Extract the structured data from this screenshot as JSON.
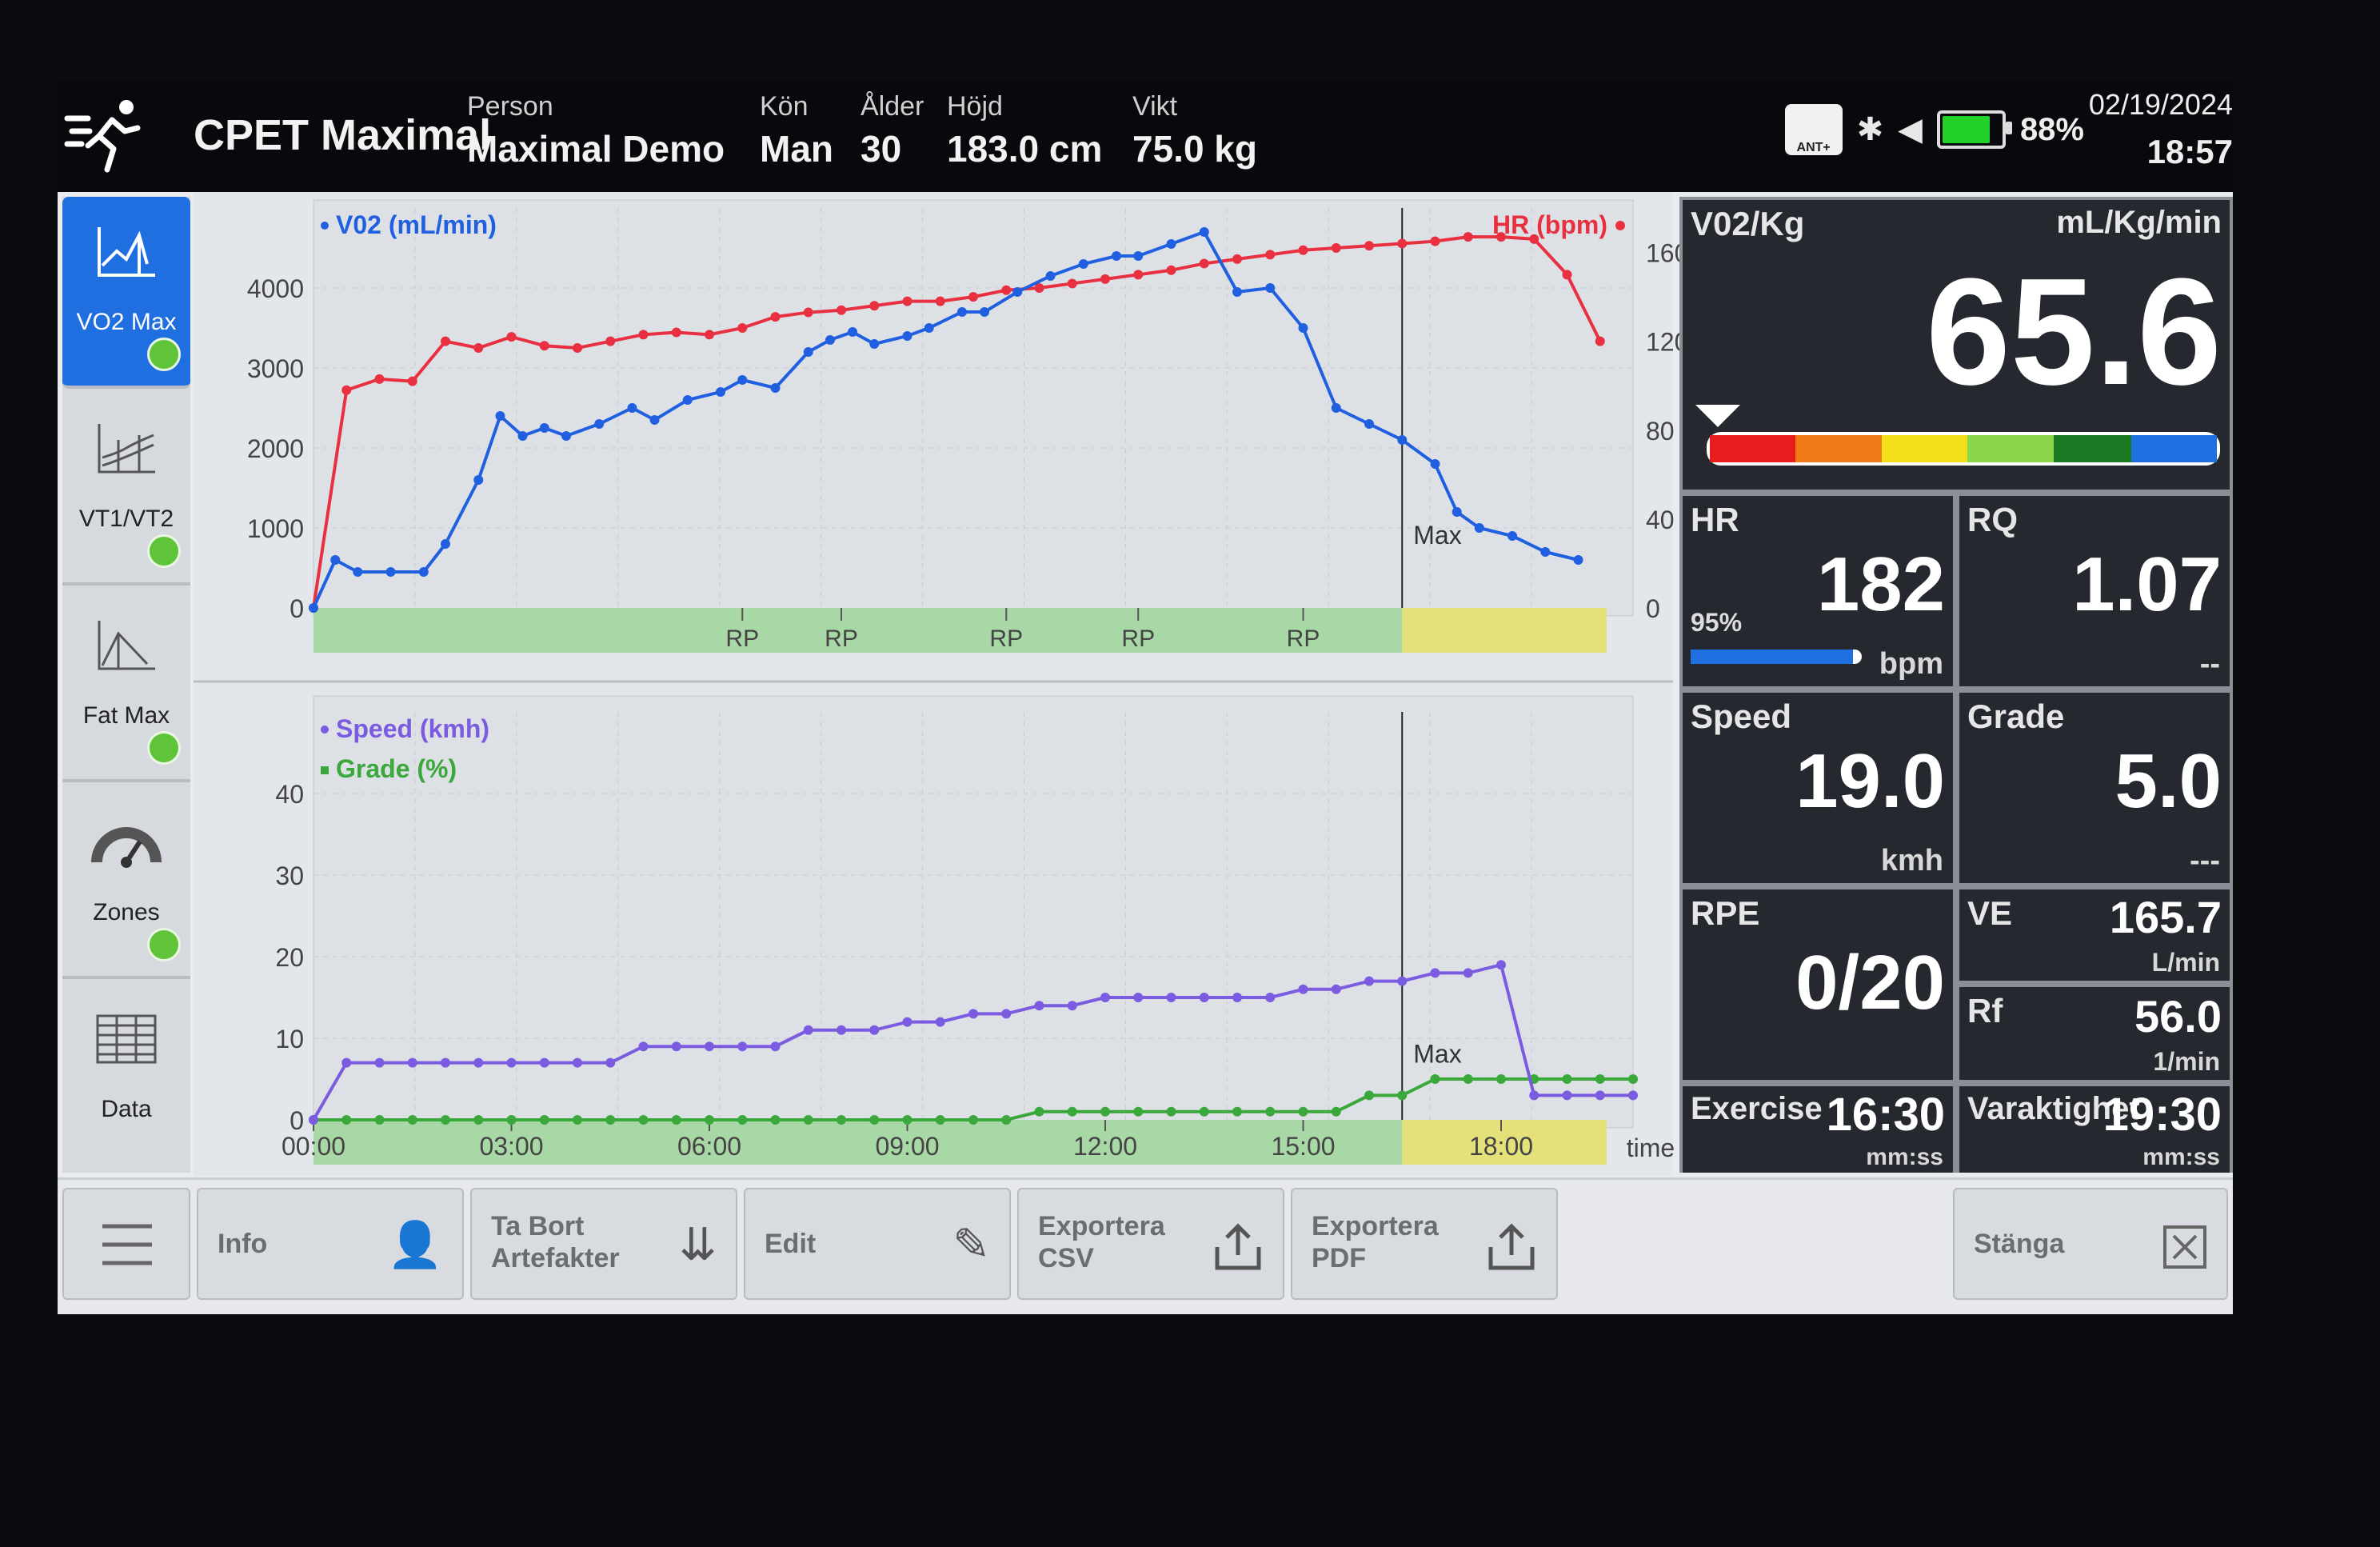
{
  "header": {
    "app_title": "CPET Maximal",
    "fields": [
      {
        "label": "Person",
        "value": "Maximal Demo"
      },
      {
        "label": "Kön",
        "value": "Man"
      },
      {
        "label": "Ålder",
        "value": "30"
      },
      {
        "label": "Höjd",
        "value": "183.0 cm"
      },
      {
        "label": "Vikt",
        "value": "75.0 kg"
      }
    ],
    "battery_pct": "88%",
    "battery_level": 0.88,
    "ant_label": "ANT+",
    "date": "02/19/2024",
    "time": "18:57"
  },
  "sidebar": {
    "items": [
      {
        "label": "VO2 Max",
        "icon": "vo2max-chart-icon",
        "active": true
      },
      {
        "label": "VT1/VT2",
        "icon": "threshold-chart-icon",
        "active": false
      },
      {
        "label": "Fat Max",
        "icon": "fatmax-chart-icon",
        "active": false
      },
      {
        "label": "Zones",
        "icon": "gauge-icon",
        "active": false
      },
      {
        "label": "Data",
        "icon": "table-icon",
        "active": false
      }
    ],
    "status_color": "#5fc43a"
  },
  "chart_data": [
    {
      "type": "line",
      "series": [
        {
          "name": "V02 (mL/min)",
          "color": "#2060e0",
          "x": [
            0,
            0.33,
            0.67,
            1.17,
            1.67,
            2,
            2.5,
            2.83,
            3.17,
            3.5,
            3.83,
            4.33,
            4.83,
            5.17,
            5.67,
            6.17,
            6.5,
            7,
            7.5,
            7.83,
            8.17,
            8.5,
            9,
            9.33,
            9.83,
            10.17,
            10.67,
            11.17,
            11.67,
            12.17,
            12.5,
            13,
            13.5,
            14,
            14.5,
            15,
            15.5,
            16,
            16.5,
            17,
            17.33,
            17.67,
            18.17,
            18.67,
            19.17
          ],
          "y": [
            0,
            600,
            450,
            450,
            450,
            800,
            1600,
            2400,
            2150,
            2250,
            2150,
            2300,
            2500,
            2350,
            2600,
            2700,
            2850,
            2750,
            3200,
            3350,
            3450,
            3300,
            3400,
            3500,
            3700,
            3700,
            3950,
            4150,
            4300,
            4400,
            4400,
            4550,
            4700,
            3950,
            4000,
            3500,
            2500,
            2300,
            2100,
            1800,
            1200,
            1000,
            900,
            700,
            600
          ]
        },
        {
          "name": "HR (bpm)",
          "color": "#e83040",
          "x": [
            0,
            0.5,
            1,
            1.5,
            2,
            2.5,
            3,
            3.5,
            4,
            4.5,
            5,
            5.5,
            6,
            6.5,
            7,
            7.5,
            8,
            8.5,
            9,
            9.5,
            10,
            10.5,
            11,
            11.5,
            12,
            12.5,
            13,
            13.5,
            14,
            14.5,
            15,
            15.5,
            16,
            16.5,
            17,
            17.5,
            18,
            18.5,
            19,
            19.5
          ],
          "y": [
            0,
            98,
            103,
            102,
            120,
            117,
            122,
            118,
            117,
            120,
            123,
            124,
            123,
            126,
            131,
            133,
            134,
            136,
            138,
            138,
            140,
            143,
            144,
            146,
            148,
            150,
            152,
            155,
            157,
            159,
            161,
            162,
            163,
            164,
            165,
            167,
            167,
            166,
            150,
            120
          ]
        }
      ],
      "ylabel_left": "V02 (mL/min)",
      "ylabel_right": "HR (bpm)",
      "yticks_left": [
        "4000",
        "3000",
        "2000",
        "1000",
        "0"
      ],
      "yticks_right": [
        "160",
        "120",
        "80",
        "40",
        "0"
      ],
      "ylim_left": [
        0,
        5000
      ],
      "ylim_right": [
        0,
        180
      ],
      "xlim": [
        0,
        20
      ],
      "max_label": "Max",
      "max_time": 16.5,
      "rp_labels": [
        "RP",
        "RP",
        "RP",
        "RP",
        "RP"
      ],
      "rp_times": [
        6.5,
        8,
        10.5,
        12.5,
        15
      ],
      "grid": true
    },
    {
      "type": "line",
      "series": [
        {
          "name": "Speed (kmh)",
          "color": "#7b5ce0",
          "x": [
            0,
            0.5,
            1,
            1.5,
            2,
            2.5,
            3,
            3.5,
            4,
            4.5,
            5,
            5.5,
            6,
            6.5,
            7,
            7.5,
            8,
            8.5,
            9,
            9.5,
            10,
            10.5,
            11,
            11.5,
            12,
            12.5,
            13,
            13.5,
            14,
            14.5,
            15,
            15.5,
            16,
            16.5,
            17,
            17.5,
            18,
            18.5,
            19,
            19.5,
            20
          ],
          "y": [
            0,
            7,
            7,
            7,
            7,
            7,
            7,
            7,
            7,
            7,
            9,
            9,
            9,
            9,
            9,
            11,
            11,
            11,
            12,
            12,
            13,
            13,
            14,
            14,
            15,
            15,
            15,
            15,
            15,
            15,
            16,
            16,
            17,
            17,
            18,
            18,
            19,
            3,
            3,
            3,
            3
          ]
        },
        {
          "name": "Grade (%)",
          "color": "#3aa83a",
          "x": [
            0,
            0.5,
            1,
            1.5,
            2,
            2.5,
            3,
            3.5,
            4,
            4.5,
            5,
            5.5,
            6,
            6.5,
            7,
            7.5,
            8,
            8.5,
            9,
            9.5,
            10,
            10.5,
            11,
            11.5,
            12,
            12.5,
            13,
            13.5,
            14,
            14.5,
            15,
            15.5,
            16,
            16.5,
            17,
            17.5,
            18,
            18.5,
            19,
            19.5,
            20
          ],
          "y": [
            0,
            0,
            0,
            0,
            0,
            0,
            0,
            0,
            0,
            0,
            0,
            0,
            0,
            0,
            0,
            0,
            0,
            0,
            0,
            0,
            0,
            0,
            1,
            1,
            1,
            1,
            1,
            1,
            1,
            1,
            1,
            1,
            3,
            3,
            5,
            5,
            5,
            5,
            5,
            5,
            5
          ]
        }
      ],
      "yticks": [
        "40",
        "30",
        "20",
        "10",
        "0"
      ],
      "ylim": [
        0,
        50
      ],
      "xticks": [
        "00:00",
        "03:00",
        "06:00",
        "09:00",
        "12:00",
        "15:00",
        "18:00"
      ],
      "xlabel": "time",
      "max_label": "Max",
      "grid": true
    }
  ],
  "tiles": {
    "vo2kg": {
      "label": "V02/Kg",
      "unit": "mL/Kg/min",
      "value": "65.6",
      "indicator_position": 0.01
    },
    "hr": {
      "label": "HR",
      "value": "182",
      "unit": "bpm",
      "pct_label": "95%",
      "pct_fill": 0.95
    },
    "rq": {
      "label": "RQ",
      "value": "1.07",
      "unit": "--"
    },
    "speed": {
      "label": "Speed",
      "value": "19.0",
      "unit": "kmh"
    },
    "grade": {
      "label": "Grade",
      "value": "5.0",
      "unit": "---"
    },
    "rpe": {
      "label": "RPE",
      "value": "0/20"
    },
    "ve": {
      "label": "VE",
      "value": "165.7",
      "unit": "L/min"
    },
    "rf": {
      "label": "Rf",
      "value": "56.0",
      "unit": "1/min"
    },
    "exercise": {
      "label": "Exercise",
      "value": "16:30",
      "unit": "mm:ss"
    },
    "duration": {
      "label": "Varaktighet",
      "value": "19:30",
      "unit": "mm:ss"
    }
  },
  "colors": {
    "accent": "#1f6fe0",
    "vo2": "#2060e0",
    "hr": "#e83040",
    "speed": "#7b5ce0",
    "grade": "#3aa83a"
  },
  "toolbar": {
    "buttons": [
      {
        "label": "Info",
        "icon": "person-info-icon"
      },
      {
        "label": "Ta Bort\nArtefakter",
        "icon": "remove-artifacts-icon"
      },
      {
        "label": "Edit",
        "icon": "pencil-icon"
      },
      {
        "label": "Exportera\nCSV",
        "icon": "export-icon"
      },
      {
        "label": "Exportera\nPDF",
        "icon": "export-icon"
      }
    ],
    "close_label": "Stänga"
  }
}
